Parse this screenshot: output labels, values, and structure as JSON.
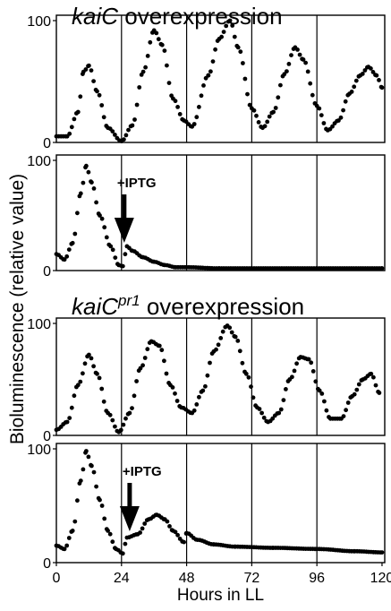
{
  "chart_data": {
    "type": "scatter",
    "ylabel": "Bioluminescence (relative value)",
    "xlabel": "Hours in LL",
    "x_ticks": [
      "0",
      "24",
      "48",
      "72",
      "96",
      "120"
    ],
    "xlim": [
      0,
      121
    ],
    "grid_vertical_at": [
      24,
      48,
      72,
      96
    ],
    "point_color": "#000000",
    "sections": [
      {
        "title_gene": "kaiC",
        "title_superscript": "",
        "title_rest": " overexpression",
        "panels": [
          {
            "y_ticks": [
              "0",
              "100"
            ],
            "ylim": [
              0,
              100
            ],
            "annotation": "",
            "arrow_at": null,
            "curve": [
              [
                0,
                5
              ],
              [
                4,
                5
              ],
              [
                8,
                25
              ],
              [
                10,
                58
              ],
              [
                12,
                63
              ],
              [
                15,
                42
              ],
              [
                19,
                12
              ],
              [
                24,
                1
              ],
              [
                28,
                14
              ],
              [
                32,
                58
              ],
              [
                36,
                92
              ],
              [
                39,
                80
              ],
              [
                43,
                36
              ],
              [
                47,
                18
              ],
              [
                50,
                13
              ],
              [
                56,
                55
              ],
              [
                60,
                85
              ],
              [
                64,
                100
              ],
              [
                67,
                78
              ],
              [
                72,
                28
              ],
              [
                76,
                12
              ],
              [
                80,
                25
              ],
              [
                84,
                56
              ],
              [
                88,
                78
              ],
              [
                91,
                68
              ],
              [
                96,
                30
              ],
              [
                100,
                10
              ],
              [
                104,
                18
              ],
              [
                108,
                40
              ],
              [
                112,
                55
              ],
              [
                115,
                62
              ],
              [
                118,
                55
              ],
              [
                120,
                45
              ]
            ]
          },
          {
            "y_ticks": [
              "0",
              "100"
            ],
            "ylim": [
              0,
              100
            ],
            "annotation": "+IPTG",
            "arrow_at": 25,
            "curve": [
              [
                0,
                15
              ],
              [
                3,
                10
              ],
              [
                6,
                25
              ],
              [
                9,
                70
              ],
              [
                11,
                95
              ],
              [
                13,
                80
              ],
              [
                16,
                50
              ],
              [
                20,
                22
              ],
              [
                23,
                5
              ],
              [
                24.5,
                4
              ],
              [
                26,
                22
              ],
              [
                28,
                18
              ],
              [
                32,
                12
              ],
              [
                36,
                8
              ],
              [
                40,
                5
              ],
              [
                44,
                3
              ],
              [
                48,
                3
              ],
              [
                60,
                2
              ],
              [
                72,
                2
              ],
              [
                96,
                2
              ],
              [
                120,
                2
              ]
            ]
          }
        ]
      },
      {
        "title_gene": "kaiC",
        "title_superscript": "pr1",
        "title_rest": " overexpression",
        "panels": [
          {
            "y_ticks": [
              "0",
              "100"
            ],
            "ylim": [
              0,
              100
            ],
            "annotation": "",
            "arrow_at": null,
            "curve": [
              [
                0,
                5
              ],
              [
                4,
                12
              ],
              [
                8,
                45
              ],
              [
                12,
                72
              ],
              [
                15,
                55
              ],
              [
                19,
                20
              ],
              [
                23,
                3
              ],
              [
                27,
                20
              ],
              [
                31,
                60
              ],
              [
                35,
                84
              ],
              [
                38,
                80
              ],
              [
                42,
                45
              ],
              [
                46,
                25
              ],
              [
                50,
                20
              ],
              [
                54,
                40
              ],
              [
                58,
                75
              ],
              [
                63,
                98
              ],
              [
                66,
                88
              ],
              [
                70,
                55
              ],
              [
                74,
                25
              ],
              [
                78,
                12
              ],
              [
                82,
                20
              ],
              [
                86,
                50
              ],
              [
                90,
                70
              ],
              [
                93,
                68
              ],
              [
                97,
                40
              ],
              [
                101,
                15
              ],
              [
                105,
                15
              ],
              [
                109,
                35
              ],
              [
                113,
                50
              ],
              [
                116,
                55
              ],
              [
                119,
                38
              ]
            ]
          },
          {
            "y_ticks": [
              "0",
              "100"
            ],
            "ylim": [
              0,
              100
            ],
            "annotation": "+IPTG",
            "arrow_at": 27,
            "curve": [
              [
                0,
                15
              ],
              [
                3,
                12
              ],
              [
                6,
                28
              ],
              [
                9,
                72
              ],
              [
                11,
                98
              ],
              [
                13,
                85
              ],
              [
                16,
                55
              ],
              [
                19,
                28
              ],
              [
                22,
                12
              ],
              [
                24.5,
                8
              ],
              [
                26,
                22
              ],
              [
                30,
                25
              ],
              [
                34,
                38
              ],
              [
                37,
                42
              ],
              [
                40,
                38
              ],
              [
                43,
                28
              ],
              [
                47,
                18
              ],
              [
                48,
                26
              ],
              [
                52,
                20
              ],
              [
                58,
                16
              ],
              [
                66,
                14
              ],
              [
                80,
                13
              ],
              [
                96,
                12
              ],
              [
                110,
                10
              ],
              [
                120,
                9
              ]
            ]
          }
        ]
      }
    ]
  }
}
